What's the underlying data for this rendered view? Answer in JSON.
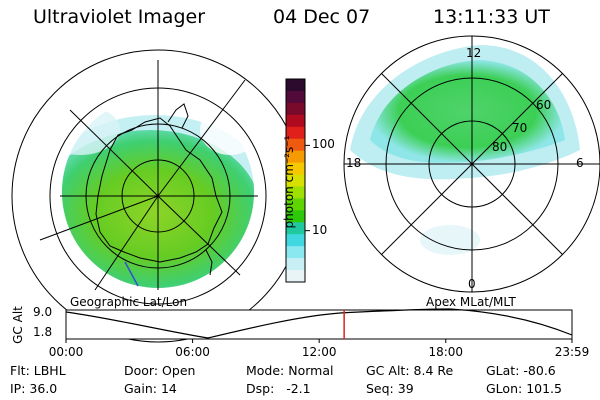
{
  "header": {
    "title": "Ultraviolet Imager",
    "date": "04 Dec 07",
    "time": "13:11:33 UT"
  },
  "left_map": {
    "label": "Geographic Lat/Lon"
  },
  "right_map": {
    "label": "Apex MLat/MLT",
    "mlt_labels": {
      "top": "12",
      "left": "18",
      "right": "6",
      "bottom": "0"
    },
    "lat_labels": [
      "60",
      "70",
      "80"
    ]
  },
  "colorbar": {
    "unit_label": "photon cm⁻²s⁻¹",
    "ticks": [
      {
        "label": "100",
        "value": 100
      },
      {
        "label": "10",
        "value": 10
      }
    ],
    "colors": [
      "#2b0a2e",
      "#520a3a",
      "#7a0a2b",
      "#b00a20",
      "#e0201a",
      "#f05a10",
      "#f59a00",
      "#f5c800",
      "#d8e000",
      "#9ee000",
      "#5ed400",
      "#2ec80a",
      "#20c8a0",
      "#40d8e0",
      "#8ae8f0",
      "#c8f0f4",
      "#e8f4f6"
    ]
  },
  "altitude_plot": {
    "ylabel": "GC Alt",
    "y_ticks": [
      "9.0",
      "1.8"
    ],
    "x_ticks": [
      "00:00",
      "06:00",
      "12:00",
      "18:00",
      "23:59"
    ],
    "current_time": "13:11"
  },
  "info": {
    "flt_label": "Flt:",
    "flt_value": "LBHL",
    "ip_label": "IP:",
    "ip_value": "36.0",
    "door_label": "Door:",
    "door_value": "Open",
    "gain_label": "Gain:",
    "gain_value": "14",
    "mode_label": "Mode:",
    "mode_value": "Normal",
    "dsp_label": "Dsp:",
    "dsp_value": "-2.1",
    "gcalt_label": "GC Alt:",
    "gcalt_value": "8.4 Re",
    "seq_label": "Seq:",
    "seq_value": "39",
    "glat_label": "GLat:",
    "glat_value": "-80.6",
    "glon_label": "GLon:",
    "glon_value": "101.5"
  }
}
